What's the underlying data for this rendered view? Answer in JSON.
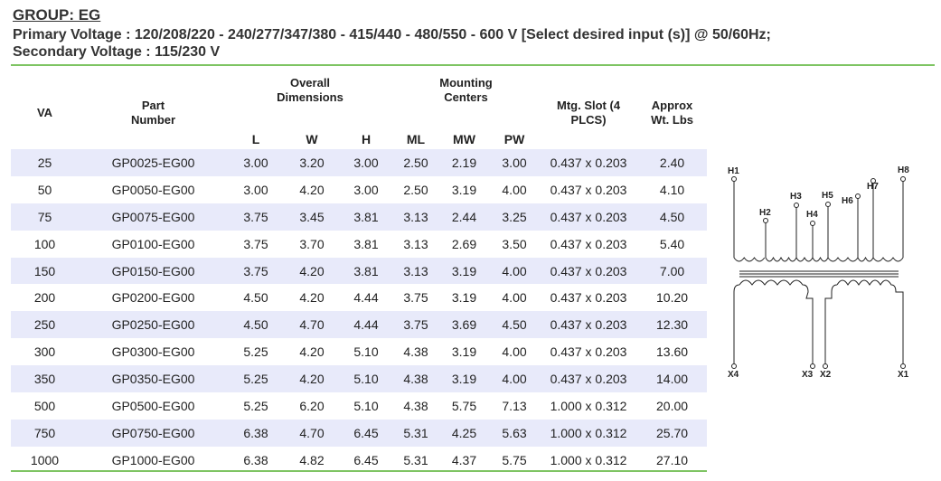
{
  "header": {
    "group": "GROUP: EG",
    "primary": "Primary Voltage : 120/208/220 - 240/277/347/380 - 415/440 - 480/550 -  600 V  [Select desired input (s)] @ 50/60Hz;",
    "secondary": "Secondary Voltage : 115/230 V"
  },
  "table": {
    "headers": {
      "va": "VA",
      "part_number": "Part Number",
      "overall_dimensions": "Overall Dimensions",
      "mounting_centers": "Mounting Centers",
      "mtg_slot": "Mtg. Slot (4 PLCS)",
      "approx_wt": "Approx Wt. Lbs",
      "l": "L",
      "w": "W",
      "h": "H",
      "ml": "ML",
      "mw": "MW",
      "pw": "PW"
    },
    "rows": [
      {
        "va": "25",
        "part": "GP0025-EG00",
        "l": "3.00",
        "w": "3.20",
        "h": "3.00",
        "ml": "2.50",
        "mw": "2.19",
        "pw": "3.00",
        "slot": "0.437 x 0.203",
        "wt": "2.40"
      },
      {
        "va": "50",
        "part": "GP0050-EG00",
        "l": "3.00",
        "w": "4.20",
        "h": "3.00",
        "ml": "2.50",
        "mw": "3.19",
        "pw": "4.00",
        "slot": "0.437 x 0.203",
        "wt": "4.10"
      },
      {
        "va": "75",
        "part": "GP0075-EG00",
        "l": "3.75",
        "w": "3.45",
        "h": "3.81",
        "ml": "3.13",
        "mw": "2.44",
        "pw": "3.25",
        "slot": "0.437 x 0.203",
        "wt": "4.50"
      },
      {
        "va": "100",
        "part": "GP0100-EG00",
        "l": "3.75",
        "w": "3.70",
        "h": "3.81",
        "ml": "3.13",
        "mw": "2.69",
        "pw": "3.50",
        "slot": "0.437 x 0.203",
        "wt": "5.40"
      },
      {
        "va": "150",
        "part": "GP0150-EG00",
        "l": "3.75",
        "w": "4.20",
        "h": "3.81",
        "ml": "3.13",
        "mw": "3.19",
        "pw": "4.00",
        "slot": "0.437 x 0.203",
        "wt": "7.00"
      },
      {
        "va": "200",
        "part": "GP0200-EG00",
        "l": "4.50",
        "w": "4.20",
        "h": "4.44",
        "ml": "3.75",
        "mw": "3.19",
        "pw": "4.00",
        "slot": "0.437 x 0.203",
        "wt": "10.20"
      },
      {
        "va": "250",
        "part": "GP0250-EG00",
        "l": "4.50",
        "w": "4.70",
        "h": "4.44",
        "ml": "3.75",
        "mw": "3.69",
        "pw": "4.50",
        "slot": "0.437 x 0.203",
        "wt": "12.30"
      },
      {
        "va": "300",
        "part": "GP0300-EG00",
        "l": "5.25",
        "w": "4.20",
        "h": "5.10",
        "ml": "4.38",
        "mw": "3.19",
        "pw": "4.00",
        "slot": "0.437 x 0.203",
        "wt": "13.60"
      },
      {
        "va": "350",
        "part": "GP0350-EG00",
        "l": "5.25",
        "w": "4.20",
        "h": "5.10",
        "ml": "4.38",
        "mw": "3.19",
        "pw": "4.00",
        "slot": "0.437 x 0.203",
        "wt": "14.00"
      },
      {
        "va": "500",
        "part": "GP0500-EG00",
        "l": "5.25",
        "w": "6.20",
        "h": "5.10",
        "ml": "4.38",
        "mw": "5.75",
        "pw": "7.13",
        "slot": "1.000 x 0.312",
        "wt": "20.00"
      },
      {
        "va": "750",
        "part": "GP0750-EG00",
        "l": "6.38",
        "w": "4.70",
        "h": "6.45",
        "ml": "5.31",
        "mw": "4.25",
        "pw": "5.63",
        "slot": "1.000 x 0.312",
        "wt": "25.70"
      },
      {
        "va": "1000",
        "part": "GP1000-EG00",
        "l": "6.38",
        "w": "4.82",
        "h": "6.45",
        "ml": "5.31",
        "mw": "4.37",
        "pw": "5.75",
        "slot": "1.000 x 0.312",
        "wt": "27.10"
      }
    ]
  },
  "diagram": {
    "primary_terminals": [
      "H1",
      "H2",
      "H3",
      "H4",
      "H5",
      "H6",
      "H7",
      "H8"
    ],
    "secondary_terminals": [
      "X4",
      "X3",
      "X2",
      "X1"
    ]
  },
  "colors": {
    "rule_green": "#7ec463",
    "row_stripe": "#e8eafa"
  }
}
